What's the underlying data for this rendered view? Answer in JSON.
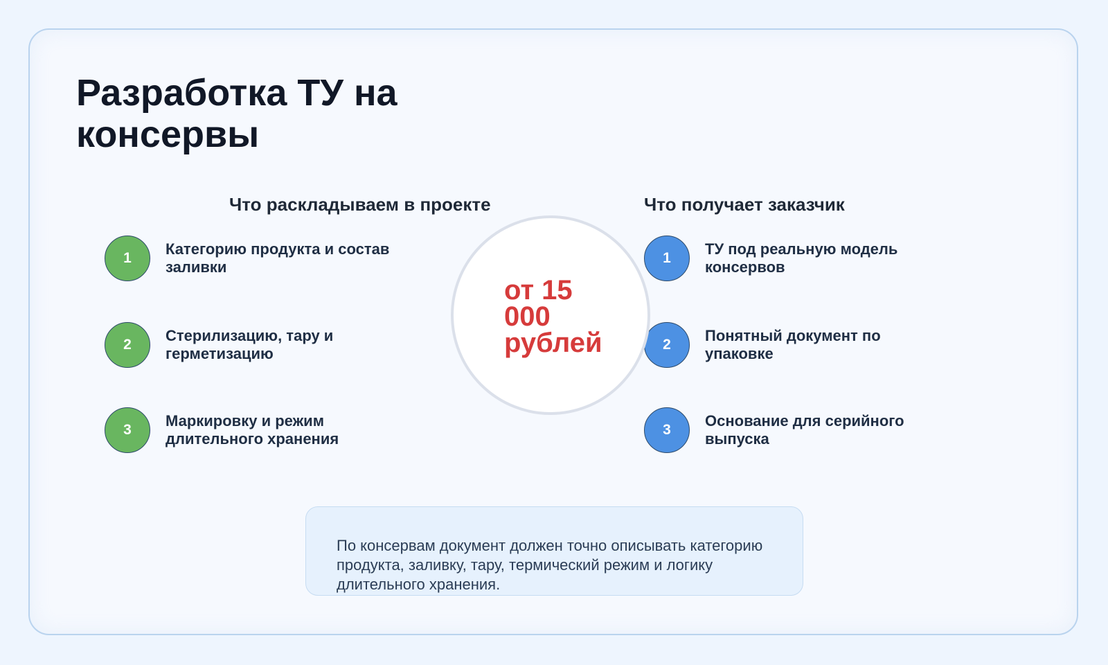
{
  "title": "Разработка ТУ на консервы",
  "left": {
    "heading": "Что раскладываем в проекте",
    "color": "#69b660",
    "items": [
      {
        "num": "1",
        "text": "Категорию продукта и состав заливки"
      },
      {
        "num": "2",
        "text": "Стерилизацию, тару и герметизацию"
      },
      {
        "num": "3",
        "text": "Маркировку и режим длительного хранения"
      }
    ]
  },
  "right": {
    "heading": "Что получает заказчик",
    "color": "#4d91e3",
    "items": [
      {
        "num": "1",
        "text": "ТУ под реальную модель консервов"
      },
      {
        "num": "2",
        "text": "Понятный документ по упаковке"
      },
      {
        "num": "3",
        "text": "Основание для серийного выпуска"
      }
    ]
  },
  "price": "от 15 000 рублей",
  "price_color": "#d63b3b",
  "note": "По консервам документ должен точно описывать категорию продукта, заливку, тару, термический режим и логику длительного хранения."
}
